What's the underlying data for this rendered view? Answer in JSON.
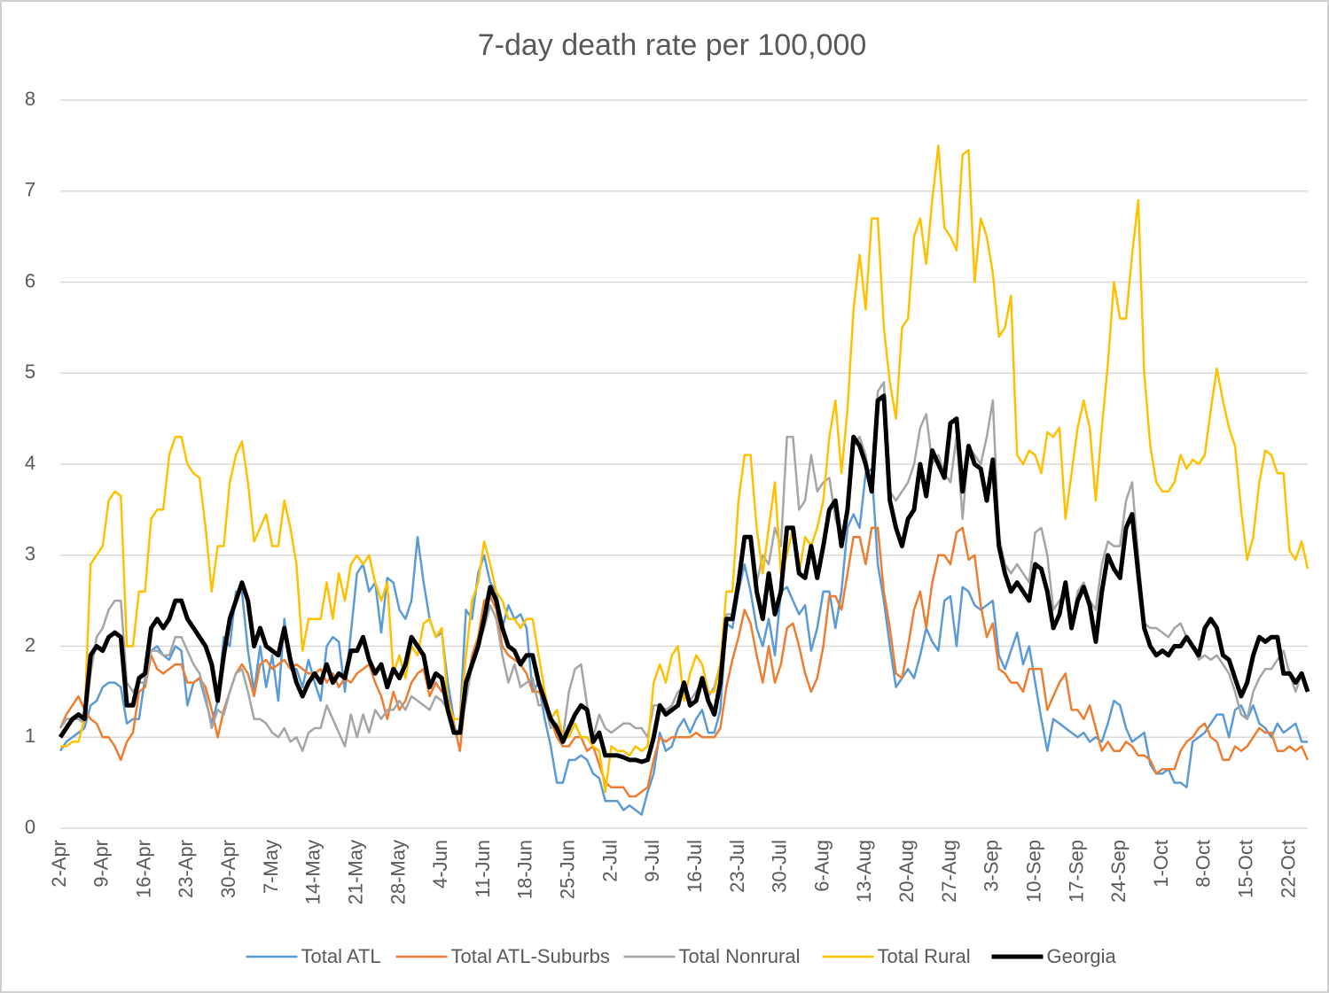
{
  "chart_data": {
    "type": "line",
    "title": "7-day death rate per 100,000",
    "categories": [
      "2-Apr",
      null,
      null,
      null,
      null,
      null,
      null,
      "9-Apr",
      null,
      null,
      null,
      null,
      null,
      null,
      "16-Apr",
      null,
      null,
      null,
      null,
      null,
      null,
      "23-Apr",
      null,
      null,
      null,
      null,
      null,
      null,
      "30-Apr",
      null,
      null,
      null,
      null,
      null,
      null,
      "7-May",
      null,
      null,
      null,
      null,
      null,
      null,
      "14-May",
      null,
      null,
      null,
      null,
      null,
      null,
      "21-May",
      null,
      null,
      null,
      null,
      null,
      null,
      "28-May",
      null,
      null,
      null,
      null,
      null,
      null,
      "4-Jun",
      null,
      null,
      null,
      null,
      null,
      null,
      "11-Jun",
      null,
      null,
      null,
      null,
      null,
      null,
      "18-Jun",
      null,
      null,
      null,
      null,
      null,
      null,
      "25-Jun",
      null,
      null,
      null,
      null,
      null,
      null,
      "2-Jul",
      null,
      null,
      null,
      null,
      null,
      null,
      "9-Jul",
      null,
      null,
      null,
      null,
      null,
      null,
      "16-Jul",
      null,
      null,
      null,
      null,
      null,
      null,
      "23-Jul",
      null,
      null,
      null,
      null,
      null,
      null,
      "30-Jul",
      null,
      null,
      null,
      null,
      null,
      null,
      "6-Aug",
      null,
      null,
      null,
      null,
      null,
      null,
      "13-Aug",
      null,
      null,
      null,
      null,
      null,
      null,
      "20-Aug",
      null,
      null,
      null,
      null,
      null,
      null,
      "27-Aug",
      null,
      null,
      null,
      null,
      null,
      null,
      "3-Sep",
      null,
      null,
      null,
      null,
      null,
      null,
      "10-Sep",
      null,
      null,
      null,
      null,
      null,
      null,
      "17-Sep",
      null,
      null,
      null,
      null,
      null,
      null,
      "24-Sep",
      null,
      null,
      null,
      null,
      null,
      null,
      "1-Oct",
      null,
      null,
      null,
      null,
      null,
      null,
      "8-Oct",
      null,
      null,
      null,
      null,
      null,
      null,
      "15-Oct",
      null,
      null,
      null,
      null,
      null,
      null,
      "22-Oct",
      null,
      null,
      null
    ],
    "series": [
      {
        "name": "Total ATL",
        "color": "#5b9bd5",
        "width": 2.5,
        "values": [
          0.85,
          0.95,
          1.0,
          1.05,
          1.1,
          1.35,
          1.4,
          1.55,
          1.6,
          1.6,
          1.55,
          1.15,
          1.2,
          1.2,
          1.65,
          1.95,
          2.0,
          1.9,
          1.85,
          2.0,
          1.95,
          1.35,
          1.6,
          1.65,
          1.4,
          1.15,
          1.4,
          2.1,
          2.0,
          2.6,
          2.6,
          1.95,
          1.5,
          2.0,
          1.55,
          1.9,
          1.4,
          2.3,
          1.75,
          1.75,
          1.55,
          1.85,
          1.6,
          1.4,
          2.0,
          2.1,
          2.05,
          1.5,
          2.15,
          2.8,
          2.9,
          2.6,
          2.7,
          2.15,
          2.75,
          2.7,
          2.4,
          2.3,
          2.5,
          3.2,
          2.7,
          2.3,
          2.1,
          2.15,
          1.6,
          1.2,
          1.2,
          2.4,
          2.3,
          2.8,
          3.0,
          2.7,
          2.6,
          2.2,
          2.45,
          2.3,
          2.35,
          2.2,
          1.5,
          1.6,
          1.2,
          0.9,
          0.5,
          0.5,
          0.75,
          0.75,
          0.8,
          0.75,
          0.6,
          0.55,
          0.3,
          0.3,
          0.3,
          0.2,
          0.25,
          0.2,
          0.15,
          0.4,
          0.6,
          1.05,
          0.85,
          0.9,
          1.1,
          1.2,
          1.05,
          1.2,
          1.3,
          1.05,
          1.05,
          1.3,
          2.25,
          2.2,
          2.6,
          2.9,
          2.6,
          2.2,
          2.0,
          2.3,
          1.9,
          2.6,
          2.65,
          2.5,
          2.35,
          2.45,
          1.95,
          2.2,
          2.6,
          2.6,
          2.2,
          2.6,
          3.3,
          3.45,
          3.3,
          3.9,
          3.95,
          2.9,
          2.5,
          2.0,
          1.55,
          1.65,
          1.75,
          1.65,
          1.9,
          2.2,
          2.05,
          1.95,
          2.5,
          2.55,
          2.0,
          2.65,
          2.6,
          2.45,
          2.4,
          2.45,
          2.5,
          1.9,
          1.75,
          1.95,
          2.15,
          1.8,
          2.0,
          1.6,
          1.2,
          0.85,
          1.2,
          1.15,
          1.1,
          1.05,
          1.0,
          1.05,
          0.95,
          1.0,
          0.95,
          1.15,
          1.4,
          1.35,
          1.1,
          0.95,
          1.0,
          1.05,
          0.7,
          0.6,
          0.6,
          0.65,
          0.5,
          0.5,
          0.45,
          0.95,
          1.0,
          1.05,
          1.15,
          1.25,
          1.25,
          1.0,
          1.3,
          1.35,
          1.2,
          1.35,
          1.15,
          1.1,
          1.0,
          1.15,
          1.05,
          1.1,
          1.15,
          0.95,
          0.95
        ]
      },
      {
        "name": "Total ATL-Suburbs",
        "color": "#ed7d31",
        "width": 2.5,
        "values": [
          1.1,
          1.25,
          1.35,
          1.45,
          1.3,
          1.2,
          1.15,
          1.0,
          1.0,
          0.9,
          0.75,
          0.95,
          1.05,
          1.5,
          1.55,
          1.9,
          1.75,
          1.7,
          1.75,
          1.8,
          1.8,
          1.6,
          1.6,
          1.65,
          1.55,
          1.3,
          1.0,
          1.3,
          1.5,
          1.7,
          1.8,
          1.7,
          1.45,
          1.8,
          1.85,
          1.75,
          1.8,
          1.85,
          1.75,
          1.8,
          1.75,
          1.7,
          1.7,
          1.75,
          1.6,
          1.7,
          1.55,
          1.65,
          1.6,
          1.7,
          1.75,
          1.8,
          1.6,
          1.45,
          1.2,
          1.5,
          1.3,
          1.4,
          1.6,
          1.7,
          1.75,
          1.45,
          1.6,
          1.5,
          1.45,
          1.15,
          0.85,
          1.5,
          1.9,
          2.1,
          2.5,
          2.55,
          2.4,
          2.0,
          1.9,
          1.85,
          1.8,
          1.7,
          1.5,
          1.5,
          1.4,
          1.2,
          1.0,
          0.9,
          0.9,
          1.0,
          1.0,
          0.85,
          0.9,
          0.7,
          0.5,
          0.45,
          0.45,
          0.45,
          0.35,
          0.35,
          0.4,
          0.45,
          0.75,
          1.0,
          0.95,
          1.0,
          1.0,
          1.0,
          1.0,
          1.05,
          1.0,
          1.0,
          1.0,
          1.1,
          1.55,
          1.85,
          2.1,
          2.4,
          2.25,
          1.9,
          1.6,
          2.0,
          1.6,
          1.8,
          2.2,
          2.25,
          2.0,
          1.7,
          1.5,
          1.65,
          2.0,
          2.55,
          2.55,
          2.4,
          2.8,
          3.2,
          3.2,
          2.9,
          3.3,
          3.3,
          2.6,
          2.2,
          1.7,
          1.65,
          2.0,
          2.4,
          2.6,
          2.2,
          2.7,
          3.0,
          3.0,
          2.9,
          3.25,
          3.3,
          2.95,
          3.0,
          2.45,
          2.1,
          2.25,
          1.75,
          1.7,
          1.6,
          1.6,
          1.5,
          1.75,
          1.75,
          1.75,
          1.3,
          1.45,
          1.6,
          1.7,
          1.3,
          1.3,
          1.2,
          1.35,
          1.1,
          0.85,
          0.95,
          0.85,
          0.85,
          0.95,
          0.9,
          0.8,
          0.8,
          0.75,
          0.6,
          0.65,
          0.65,
          0.65,
          0.85,
          0.95,
          1.0,
          1.1,
          1.15,
          1.0,
          0.95,
          0.75,
          0.75,
          0.9,
          0.85,
          0.9,
          1.0,
          1.1,
          1.05,
          1.05,
          0.85,
          0.85,
          0.9,
          0.85,
          0.9,
          0.75
        ]
      },
      {
        "name": "Total Nonrural",
        "color": "#a5a5a5",
        "width": 2.5,
        "values": [
          1.1,
          1.2,
          1.2,
          1.2,
          1.15,
          1.7,
          2.1,
          2.2,
          2.4,
          2.5,
          2.5,
          1.6,
          1.5,
          1.6,
          1.6,
          1.95,
          1.95,
          1.9,
          1.9,
          2.1,
          2.1,
          1.95,
          1.8,
          1.7,
          1.45,
          1.1,
          1.3,
          1.25,
          1.5,
          1.7,
          1.75,
          1.5,
          1.2,
          1.2,
          1.15,
          1.05,
          1.0,
          1.1,
          0.95,
          1.0,
          0.85,
          1.05,
          1.1,
          1.1,
          1.35,
          1.2,
          1.05,
          0.9,
          1.25,
          1.0,
          1.25,
          1.05,
          1.3,
          1.2,
          1.3,
          1.3,
          1.4,
          1.3,
          1.45,
          1.4,
          1.35,
          1.3,
          1.45,
          1.4,
          1.3,
          1.1,
          1.05,
          1.4,
          1.8,
          2.0,
          2.2,
          2.45,
          2.3,
          1.9,
          1.6,
          1.8,
          1.55,
          1.6,
          1.65,
          1.35,
          1.35,
          1.1,
          1.15,
          1.0,
          1.5,
          1.75,
          1.8,
          1.35,
          1.0,
          1.25,
          1.1,
          1.05,
          1.1,
          1.15,
          1.15,
          1.1,
          1.1,
          1.0,
          1.35,
          1.35,
          1.3,
          1.35,
          1.5,
          1.55,
          1.4,
          1.5,
          1.6,
          1.45,
          1.55,
          1.8,
          2.35,
          2.35,
          2.6,
          3.2,
          3.2,
          2.7,
          3.0,
          2.9,
          3.3,
          3.1,
          4.3,
          4.3,
          3.5,
          3.6,
          4.1,
          3.7,
          3.8,
          3.85,
          3.4,
          3.2,
          3.5,
          4.2,
          4.3,
          4.1,
          3.7,
          4.8,
          4.9,
          3.7,
          3.6,
          3.7,
          3.8,
          4.0,
          4.4,
          4.55,
          4.0,
          4.1,
          3.9,
          3.8,
          4.3,
          3.4,
          4.2,
          4.1,
          4.0,
          4.3,
          4.7,
          3.2,
          2.9,
          2.8,
          2.9,
          2.8,
          2.7,
          3.25,
          3.3,
          3.0,
          2.4,
          2.5,
          2.6,
          2.2,
          2.6,
          2.7,
          2.5,
          2.4,
          2.9,
          3.15,
          3.1,
          3.1,
          3.6,
          3.8,
          3.0,
          2.25,
          2.2,
          2.2,
          2.15,
          2.1,
          2.2,
          2.25,
          2.1,
          2.0,
          1.85,
          1.9,
          1.85,
          1.9,
          1.8,
          1.7,
          1.5,
          1.25,
          1.2,
          1.5,
          1.65,
          1.75,
          1.75,
          1.85,
          1.95,
          1.7,
          1.5,
          1.7,
          1.5
        ]
      },
      {
        "name": "Total Rural",
        "color": "#ffc000",
        "width": 2.5,
        "values": [
          0.9,
          0.9,
          0.95,
          0.95,
          1.2,
          2.9,
          3.0,
          3.1,
          3.6,
          3.7,
          3.65,
          2.0,
          2.0,
          2.6,
          2.6,
          3.4,
          3.5,
          3.5,
          4.1,
          4.3,
          4.3,
          4.0,
          3.9,
          3.85,
          3.3,
          2.6,
          3.1,
          3.1,
          3.8,
          4.1,
          4.25,
          3.8,
          3.15,
          3.3,
          3.45,
          3.1,
          3.1,
          3.6,
          3.3,
          2.9,
          1.95,
          2.3,
          2.3,
          2.3,
          2.7,
          2.3,
          2.8,
          2.5,
          2.9,
          3.0,
          2.9,
          3.0,
          2.7,
          2.5,
          2.7,
          1.7,
          1.9,
          1.65,
          2.0,
          1.9,
          2.25,
          2.3,
          2.1,
          2.2,
          1.4,
          1.2,
          1.2,
          1.9,
          2.5,
          2.7,
          3.15,
          2.9,
          2.6,
          2.5,
          2.3,
          2.3,
          2.2,
          2.3,
          2.3,
          1.9,
          1.5,
          1.2,
          1.3,
          1.0,
          1.0,
          1.15,
          1.0,
          1.0,
          0.9,
          0.85,
          0.4,
          0.9,
          0.85,
          0.85,
          0.8,
          0.9,
          0.85,
          0.9,
          1.6,
          1.8,
          1.6,
          1.9,
          2.0,
          1.4,
          1.7,
          1.9,
          1.8,
          1.5,
          1.5,
          1.8,
          2.6,
          2.6,
          3.6,
          4.1,
          4.1,
          3.3,
          2.8,
          3.3,
          3.8,
          2.8,
          3.0,
          3.3,
          2.8,
          3.2,
          3.1,
          3.3,
          3.6,
          4.3,
          4.7,
          3.9,
          4.6,
          5.7,
          6.3,
          5.7,
          6.7,
          6.7,
          5.5,
          4.9,
          4.5,
          5.5,
          5.6,
          6.5,
          6.7,
          6.2,
          6.9,
          7.5,
          6.6,
          6.5,
          6.35,
          7.4,
          7.45,
          6.0,
          6.7,
          6.5,
          6.1,
          5.4,
          5.5,
          5.85,
          4.1,
          4.0,
          4.15,
          4.1,
          3.9,
          4.35,
          4.3,
          4.4,
          3.4,
          3.9,
          4.4,
          4.7,
          4.4,
          3.6,
          4.4,
          5.1,
          6.0,
          5.6,
          5.6,
          6.3,
          6.9,
          5.0,
          4.2,
          3.8,
          3.7,
          3.7,
          3.8,
          4.1,
          3.95,
          4.05,
          4.0,
          4.1,
          4.6,
          5.05,
          4.7,
          4.4,
          4.2,
          3.5,
          2.95,
          3.2,
          3.8,
          4.15,
          4.1,
          3.9,
          3.9,
          3.05,
          2.95,
          3.15,
          2.85
        ]
      },
      {
        "name": "Georgia",
        "color": "#000000",
        "width": 5,
        "values": [
          1.0,
          1.1,
          1.2,
          1.25,
          1.2,
          1.9,
          2.0,
          1.95,
          2.1,
          2.15,
          2.1,
          1.35,
          1.35,
          1.65,
          1.7,
          2.2,
          2.3,
          2.2,
          2.3,
          2.5,
          2.5,
          2.3,
          2.2,
          2.1,
          2.0,
          1.8,
          1.4,
          1.9,
          2.3,
          2.5,
          2.7,
          2.5,
          2.0,
          2.2,
          2.0,
          1.95,
          1.9,
          2.2,
          1.85,
          1.6,
          1.45,
          1.6,
          1.7,
          1.6,
          1.8,
          1.6,
          1.7,
          1.65,
          1.95,
          1.95,
          2.1,
          1.85,
          1.7,
          1.8,
          1.55,
          1.75,
          1.65,
          1.8,
          2.1,
          2.0,
          1.9,
          1.55,
          1.7,
          1.65,
          1.3,
          1.05,
          1.05,
          1.6,
          1.8,
          2.0,
          2.3,
          2.65,
          2.5,
          2.2,
          2.0,
          1.95,
          1.8,
          1.9,
          1.9,
          1.6,
          1.4,
          1.2,
          1.1,
          0.95,
          1.1,
          1.25,
          1.35,
          1.3,
          0.95,
          1.05,
          0.8,
          0.8,
          0.8,
          0.78,
          0.75,
          0.75,
          0.73,
          0.75,
          1.0,
          1.35,
          1.25,
          1.3,
          1.35,
          1.6,
          1.35,
          1.4,
          1.65,
          1.4,
          1.25,
          1.6,
          2.3,
          2.3,
          2.7,
          3.2,
          3.2,
          2.6,
          2.3,
          2.8,
          2.35,
          2.6,
          3.3,
          3.3,
          2.8,
          2.75,
          3.1,
          2.75,
          3.1,
          3.5,
          3.6,
          3.1,
          3.5,
          4.3,
          4.2,
          4.0,
          3.7,
          4.7,
          4.75,
          3.6,
          3.3,
          3.1,
          3.4,
          3.5,
          4.0,
          3.65,
          4.15,
          4.0,
          3.85,
          4.45,
          4.5,
          3.7,
          4.2,
          4.0,
          3.95,
          3.6,
          4.05,
          3.1,
          2.8,
          2.6,
          2.7,
          2.6,
          2.5,
          2.9,
          2.85,
          2.6,
          2.2,
          2.35,
          2.7,
          2.2,
          2.5,
          2.65,
          2.45,
          2.05,
          2.6,
          3.0,
          2.85,
          2.75,
          3.3,
          3.45,
          2.8,
          2.2,
          2.0,
          1.9,
          1.95,
          1.9,
          2.0,
          2.0,
          2.1,
          2.0,
          1.9,
          2.2,
          2.3,
          2.2,
          1.9,
          1.85,
          1.65,
          1.45,
          1.6,
          1.9,
          2.1,
          2.05,
          2.1,
          2.1,
          1.7,
          1.7,
          1.6,
          1.7,
          1.5
        ]
      }
    ],
    "ylim": [
      0,
      8
    ],
    "yticks": [
      0,
      1,
      2,
      3,
      4,
      5,
      6,
      7,
      8
    ],
    "grid": true,
    "legend": "bottom"
  }
}
